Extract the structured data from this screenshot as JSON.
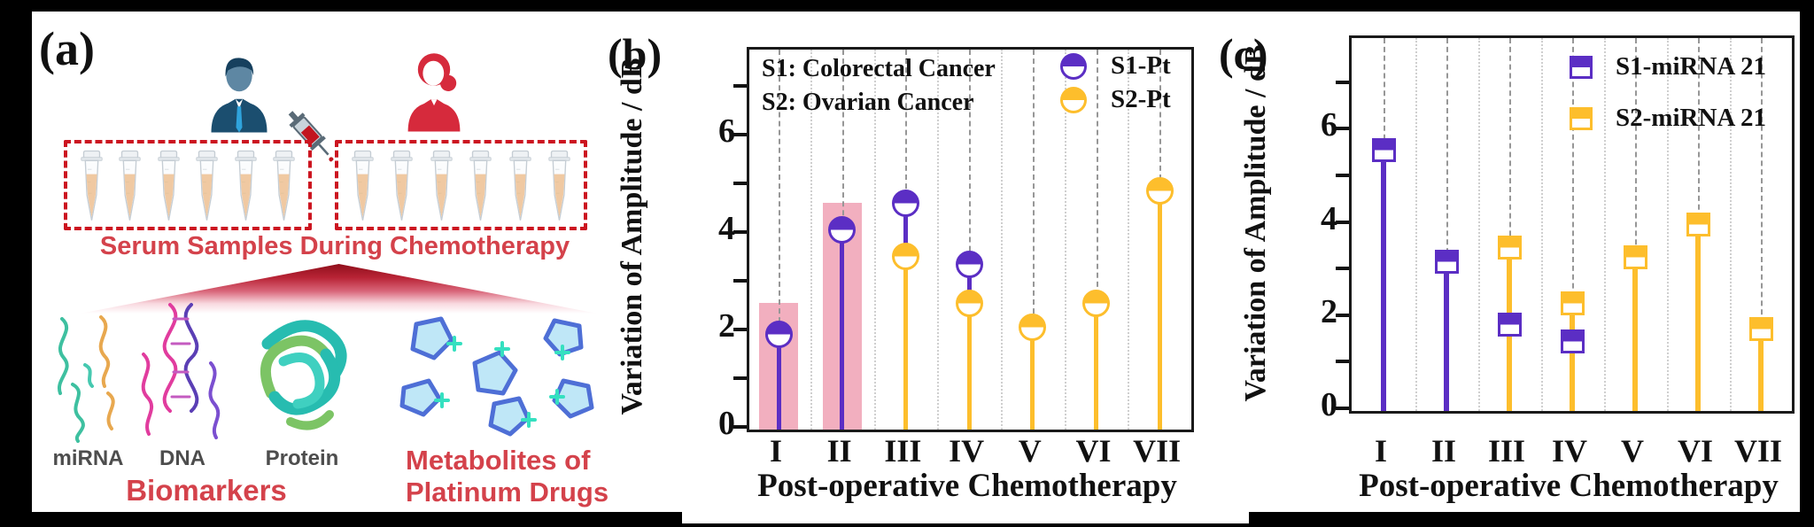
{
  "figure": {
    "panel_a": {
      "label": "(a)",
      "serum_caption": "Serum Samples During Chemotherapy",
      "tube_count": 6,
      "biomarker_item_labels": [
        "miRNA",
        "DNA",
        "Protein"
      ],
      "biomarkers_caption": "Biomarkers",
      "metabolites_caption_line1": "Metabolites of",
      "metabolites_caption_line2": "Platinum Drugs",
      "colors": {
        "red_text": "#d4424b",
        "dashed_box": "#cc1520",
        "man_suit": "#1b4e6f",
        "man_face": "#5e87a3",
        "man_tie": "#2fa3dc",
        "woman_red": "#d62a3c",
        "tube_liquid": "#f0c9a2"
      }
    },
    "panel_b_label": "(b)",
    "panel_c_label": "(c)"
  },
  "chart_data": [
    {
      "id": "b",
      "type": "lollipop",
      "xlabel": "Post-operative Chemotherapy",
      "ylabel": "Variation of Amplitude / dB",
      "categories": [
        "I",
        "II",
        "III",
        "IV",
        "V",
        "VI",
        "VII"
      ],
      "ylim": [
        0,
        7.8
      ],
      "yticks_major": [
        0,
        2,
        4,
        6
      ],
      "yticks_minor": [
        1,
        3,
        5,
        7
      ],
      "grid": "dashed at categories, dotted at midpoints",
      "legend_notes": [
        "S1: Colorectal Cancer",
        "S2: Ovarian Cancer"
      ],
      "marker_shape": "half-filled-circle",
      "series": [
        {
          "name": "S1-Pt",
          "color": "#5b2ec4",
          "values": [
            1.95,
            4.1,
            4.65,
            3.4,
            null,
            null,
            null
          ]
        },
        {
          "name": "S2-Pt",
          "color": "#fdbe2c",
          "values": [
            null,
            null,
            3.55,
            2.6,
            2.1,
            2.6,
            4.9
          ]
        }
      ],
      "highlight_bars": {
        "color": "#f2afbf",
        "values": [
          2.6,
          4.65,
          null,
          null,
          null,
          null,
          null
        ]
      }
    },
    {
      "id": "c",
      "type": "lollipop",
      "xlabel": "Post-operative Chemotherapy",
      "ylabel": "Variation of Amplitude / dB",
      "categories": [
        "I",
        "II",
        "III",
        "IV",
        "V",
        "VI",
        "VII"
      ],
      "ylim": [
        0,
        8
      ],
      "yticks_major": [
        0,
        2,
        4,
        6
      ],
      "yticks_minor": [
        1,
        3,
        5,
        7
      ],
      "grid": "dashed at categories, dotted at midpoints",
      "legend_notes": [],
      "marker_shape": "half-filled-square",
      "series": [
        {
          "name": "S1-miRNA 21",
          "color": "#5b2ec4",
          "values": [
            5.6,
            3.2,
            1.85,
            1.5,
            null,
            null,
            null
          ]
        },
        {
          "name": "S2-miRNA 21",
          "color": "#fdbe2c",
          "values": [
            null,
            null,
            3.5,
            2.3,
            3.3,
            4.0,
            1.75
          ]
        }
      ],
      "highlight_bars": null
    }
  ]
}
